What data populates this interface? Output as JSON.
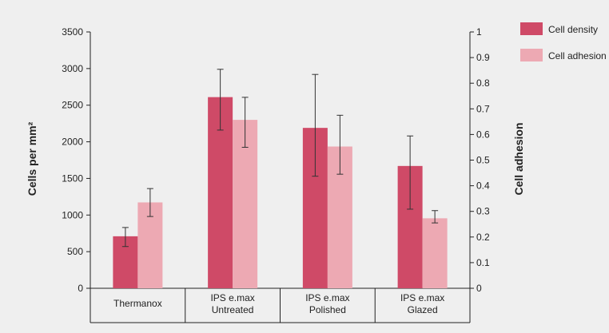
{
  "chart_data": {
    "type": "bar",
    "categories": [
      [
        "Thermanox"
      ],
      [
        "IPS e.max",
        "Untreated"
      ],
      [
        "IPS e.max",
        "Polished"
      ],
      [
        "IPS e.max",
        "Glazed"
      ]
    ],
    "ylabel_left": "Cells per mm²",
    "ylabel_right": "Cell adhesion",
    "ylim_left": [
      0,
      3500
    ],
    "ylim_right": [
      0,
      1
    ],
    "yticks_left": [
      "0",
      "500",
      "1000",
      "1500",
      "2000",
      "2500",
      "3000",
      "3500"
    ],
    "yticks_right": [
      "0",
      "0.1",
      "0.2",
      "0.3",
      "0.4",
      "0.5",
      "0.6",
      "0.7",
      "0.8",
      "0.9",
      "1"
    ],
    "grid": false,
    "legend_position": "top-right",
    "series": [
      {
        "name": "Cell density",
        "axis": "left",
        "color": "#cf4a67",
        "values": [
          710,
          2610,
          2190,
          1670
        ],
        "error_low": [
          570,
          2160,
          1530,
          1080
        ],
        "error_high": [
          830,
          2990,
          2920,
          2080
        ]
      },
      {
        "name": "Cell adhesion",
        "axis": "right",
        "color": "#eda9b3",
        "values": [
          0.335,
          0.657,
          0.553,
          0.273
        ],
        "error_low": [
          0.28,
          0.55,
          0.445,
          0.255
        ],
        "error_high": [
          0.389,
          0.745,
          0.675,
          0.303
        ]
      }
    ]
  }
}
